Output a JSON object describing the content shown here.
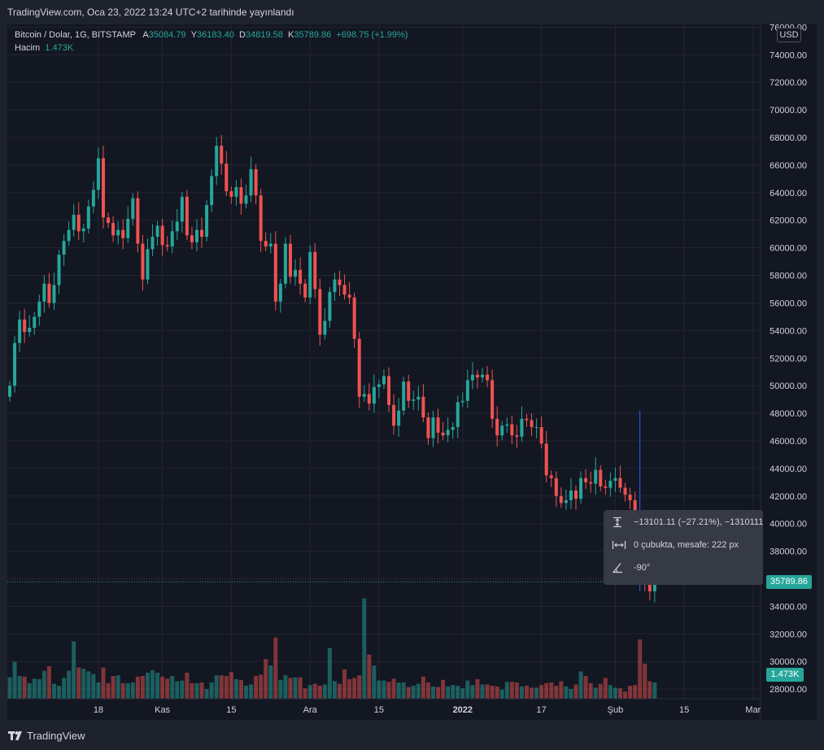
{
  "header": {
    "published": "TradingView.com, Oca 23, 2022 13:24 UTC+2 tarihinde yayınlandı"
  },
  "legend": {
    "symbol": "Bitcoin / Dolar, 1G, BITSTAMP",
    "open_label": "A",
    "open": "35084.79",
    "high_label": "Y",
    "high": "36183.40",
    "low_label": "D",
    "low": "34819.58",
    "close_label": "K",
    "close": "35789.86",
    "change": "+698.75 (+1.99%)",
    "volume_label": "Hacim",
    "volume": "1.473K"
  },
  "currency": "USD",
  "last_price_tag": "35789.86",
  "volume_tag": "1.473K",
  "measure": {
    "price_range": "−13101.11 (−27.21%), −1310111",
    "bars_distance": "0 çubukta, mesafe: 222 px",
    "angle": "-90°"
  },
  "footer": {
    "brand": "TradingView"
  },
  "colors": {
    "up": "#26a69a",
    "down": "#ef5350",
    "background": "#131722",
    "frame": "#1e222d",
    "grid": "#232632",
    "measure_line": "#2962ff"
  },
  "chart_data": {
    "type": "candlestick",
    "price_axis_ticks": [
      "76000.00",
      "74000.00",
      "72000.00",
      "70000.00",
      "68000.00",
      "66000.00",
      "64000.00",
      "62000.00",
      "60000.00",
      "58000.00",
      "56000.00",
      "54000.00",
      "52000.00",
      "50000.00",
      "48000.00",
      "46000.00",
      "44000.00",
      "42000.00",
      "40000.00",
      "38000.00",
      "36000.00",
      "34000.00",
      "32000.00",
      "30000.00",
      "28000.00"
    ],
    "time_axis_ticks": [
      {
        "label": "18",
        "day": 18
      },
      {
        "label": "Kas",
        "day": 31
      },
      {
        "label": "15",
        "day": 45
      },
      {
        "label": "Ara",
        "day": 61
      },
      {
        "label": "15",
        "day": 75
      },
      {
        "label": "2022",
        "day": 92
      },
      {
        "label": "17",
        "day": 108
      },
      {
        "label": "Şub",
        "day": 123
      },
      {
        "label": "15",
        "day": 137
      },
      {
        "label": "Mar",
        "day": 151
      }
    ],
    "ylim": [
      27300,
      76200
    ],
    "day_range": [
      0,
      153
    ],
    "measure_from": 48200,
    "measure_to": 35100,
    "measure_day": 128,
    "candles_close": [
      50000,
      53100,
      54800,
      53900,
      54200,
      55000,
      56100,
      57400,
      56000,
      57300,
      59500,
      60500,
      61300,
      62400,
      61200,
      61400,
      63000,
      64200,
      66500,
      62200,
      61800,
      60900,
      61300,
      60700,
      62100,
      63600,
      60300,
      57700,
      59900,
      60800,
      61600,
      60200,
      60100,
      61200,
      61900,
      63700,
      60900,
      60400,
      61300,
      60800,
      63100,
      65200,
      67400,
      66100,
      64100,
      63700,
      64400,
      63200,
      63800,
      65700,
      63800,
      60500,
      60100,
      60300,
      56100,
      57400,
      60300,
      57900,
      58400,
      57400,
      56400,
      59700,
      57000,
      53700,
      54700,
      56800,
      57700,
      57300,
      56600,
      56400,
      53400,
      49200,
      49400,
      48700,
      49900,
      50100,
      50700,
      48600,
      47100,
      48200,
      50300,
      48900,
      49000,
      49200,
      47700,
      46200,
      47700,
      46600,
      46400,
      46800,
      47000,
      48800,
      48900,
      50400,
      50800,
      50600,
      50800,
      50400,
      47600,
      46400,
      47100,
      47200,
      46400,
      46300,
      47600,
      47500,
      47000,
      47000,
      45800,
      43500,
      43300,
      42000,
      41500,
      41700,
      42400,
      41800,
      43300,
      43000,
      42900,
      43900,
      42700,
      42600,
      43100,
      43300,
      42600,
      42100,
      41700,
      38000,
      36600,
      35600,
      35090,
      35790
    ],
    "candles_open": [
      49200,
      50000,
      53100,
      54800,
      53900,
      54200,
      55000,
      56100,
      57400,
      56000,
      57300,
      59500,
      60500,
      61300,
      62400,
      61200,
      61400,
      63000,
      64200,
      66500,
      62200,
      61800,
      60900,
      61300,
      60700,
      62100,
      63600,
      60300,
      57700,
      59900,
      60800,
      61600,
      60200,
      60100,
      61200,
      61900,
      63700,
      60900,
      60400,
      61300,
      60800,
      63100,
      65200,
      67400,
      66100,
      64100,
      63700,
      64400,
      63200,
      63800,
      65700,
      63800,
      60500,
      60100,
      60300,
      56100,
      57400,
      60300,
      57900,
      58400,
      57400,
      56400,
      59700,
      57000,
      53700,
      54700,
      56800,
      57700,
      57300,
      56600,
      56400,
      53400,
      49200,
      49400,
      48700,
      49900,
      50100,
      50700,
      48600,
      47100,
      48200,
      50300,
      48900,
      49000,
      49200,
      47700,
      46200,
      47700,
      46600,
      46400,
      46800,
      47000,
      48800,
      48900,
      50400,
      50800,
      50600,
      50800,
      50400,
      47600,
      46400,
      47100,
      47200,
      46400,
      46300,
      47600,
      47500,
      47000,
      47000,
      45800,
      43500,
      43300,
      42000,
      41500,
      41700,
      42400,
      41800,
      43300,
      43000,
      42900,
      43900,
      42700,
      42600,
      43100,
      43300,
      42600,
      42100,
      41700,
      38000,
      36600,
      35600,
      35090
    ],
    "volume_relative": [
      0.33,
      0.57,
      0.35,
      0.34,
      0.24,
      0.31,
      0.3,
      0.43,
      0.5,
      0.23,
      0.2,
      0.32,
      0.43,
      0.88,
      0.48,
      0.46,
      0.42,
      0.38,
      0.25,
      0.48,
      0.24,
      0.35,
      0.36,
      0.24,
      0.24,
      0.25,
      0.34,
      0.35,
      0.4,
      0.44,
      0.4,
      0.34,
      0.31,
      0.35,
      0.27,
      0.28,
      0.4,
      0.24,
      0.24,
      0.25,
      0.15,
      0.25,
      0.36,
      0.36,
      0.35,
      0.41,
      0.3,
      0.29,
      0.2,
      0.22,
      0.35,
      0.37,
      0.61,
      0.51,
      0.94,
      0.29,
      0.36,
      0.32,
      0.33,
      0.33,
      0.16,
      0.21,
      0.23,
      0.2,
      0.22,
      0.78,
      0.27,
      0.23,
      0.45,
      0.3,
      0.32,
      0.36,
      1.54,
      0.68,
      0.51,
      0.28,
      0.28,
      0.26,
      0.31,
      0.25,
      0.25,
      0.18,
      0.2,
      0.23,
      0.34,
      0.25,
      0.19,
      0.18,
      0.29,
      0.19,
      0.21,
      0.2,
      0.16,
      0.28,
      0.21,
      0.3,
      0.22,
      0.22,
      0.2,
      0.19,
      0.14,
      0.26,
      0.26,
      0.25,
      0.19,
      0.2,
      0.17,
      0.17,
      0.21,
      0.24,
      0.25,
      0.2,
      0.27,
      0.19,
      0.15,
      0.22,
      0.42,
      0.35,
      0.24,
      0.17,
      0.23,
      0.32,
      0.21,
      0.17,
      0.16,
      0.11,
      0.2,
      0.21,
      0.91,
      0.54,
      0.27,
      0.25
    ]
  }
}
